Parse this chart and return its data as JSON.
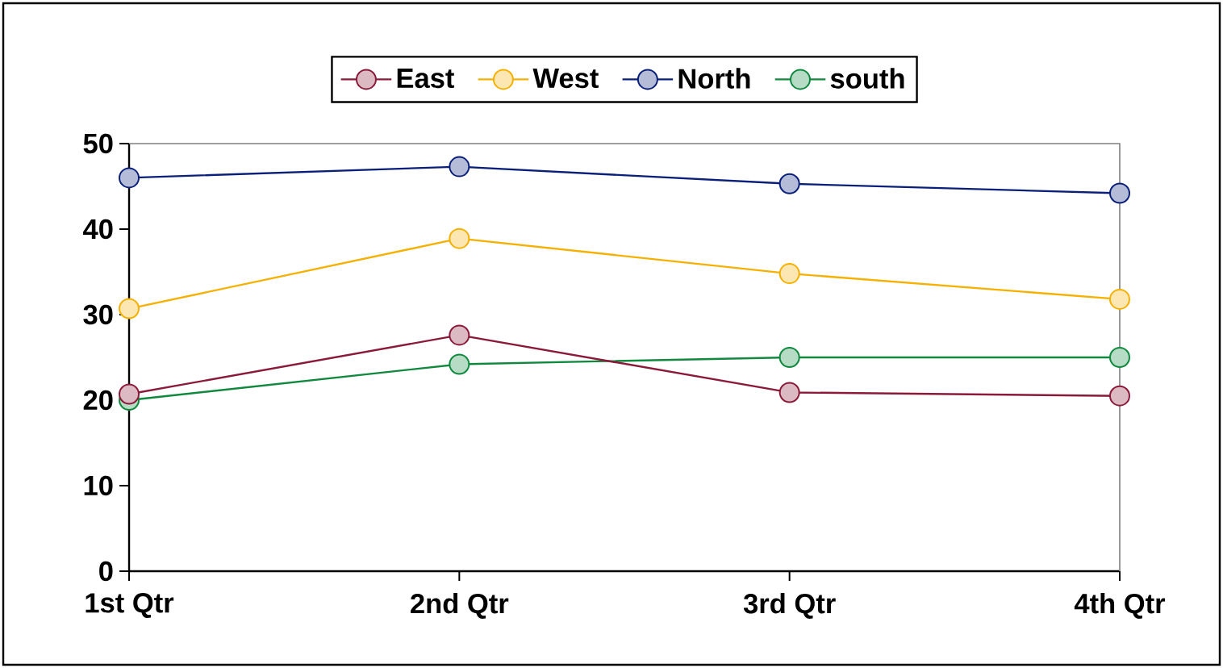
{
  "chart_data": {
    "type": "line",
    "categories": [
      "1st Qtr",
      "2nd Qtr",
      "3rd Qtr",
      "4th Qtr"
    ],
    "series": [
      {
        "name": "East",
        "color": "#8b1a3a",
        "values": [
          20.7,
          27.6,
          20.9,
          20.5
        ]
      },
      {
        "name": "West",
        "color": "#f5b000",
        "values": [
          30.7,
          38.9,
          34.8,
          31.8
        ]
      },
      {
        "name": "North",
        "color": "#0a1f7a",
        "values": [
          46.0,
          47.3,
          45.3,
          44.2
        ]
      },
      {
        "name": "south",
        "color": "#10893e",
        "values": [
          20.0,
          24.2,
          25.0,
          25.0
        ]
      }
    ],
    "ylim": [
      0,
      50
    ],
    "yticks": [
      0,
      10,
      20,
      30,
      40,
      50
    ],
    "legend": "top",
    "marker": "circle",
    "line_style": "solid",
    "grid": false
  }
}
